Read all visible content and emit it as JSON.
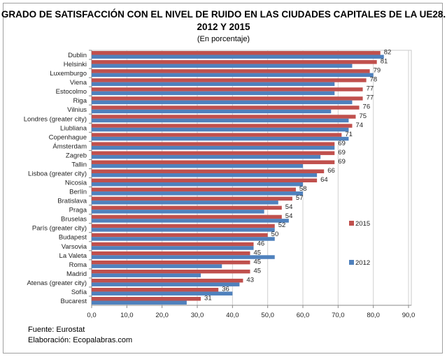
{
  "chart_data": {
    "type": "bar",
    "orientation": "horizontal",
    "title": "GRADO DE SATISFACCIÓN CON EL NIVEL DE RUIDO EN LAS CIUDADES CAPITALES DE LA UE28.",
    "title_line2": "2012 Y 2015",
    "subtitle": "(En porcentaje)",
    "categories": [
      "Dublin",
      "Helsinki",
      "Luxemburgo",
      "Viena",
      "Estocolmo",
      "Riga",
      "Vilnius",
      "Londres (greater city)",
      "Liubliana",
      "Copenhague",
      "Ámsterdam",
      "Zagreb",
      "Tallin",
      "Lisboa (greater city)",
      "Nicosia",
      "Berlín",
      "Bratislava",
      "Praga",
      "Bruselas",
      "París (greater city)",
      "Budapest",
      "Varsovia",
      "La Valeta",
      "Roma",
      "Madrid",
      "Atenas (greater city)",
      "Sofía",
      "Bucarest"
    ],
    "series": [
      {
        "name": "2015",
        "color": "#c0504d",
        "values": [
          82,
          81,
          79,
          78,
          77,
          77,
          76,
          75,
          74,
          71,
          69,
          69,
          69,
          66,
          64,
          58,
          57,
          54,
          54,
          52,
          50,
          46,
          45,
          45,
          45,
          43,
          36,
          31
        ]
      },
      {
        "name": "2012",
        "color": "#4f81bd",
        "values": [
          83,
          74,
          80,
          69,
          69,
          74,
          68,
          73,
          73,
          73,
          69,
          65,
          60,
          64,
          60,
          60,
          53,
          49,
          56,
          52,
          52,
          46,
          52,
          37,
          31,
          42,
          40,
          27
        ]
      }
    ],
    "xlim": [
      0,
      90
    ],
    "xticks": [
      "0,0",
      "10,0",
      "20,0",
      "30,0",
      "40,0",
      "50,0",
      "60,0",
      "70,0",
      "80,0",
      "90,0"
    ],
    "grid": true,
    "legend": "right"
  },
  "footer": {
    "source": "Fuente:  Eurostat",
    "author": "Elaboración:  Ecopalabras.com"
  }
}
